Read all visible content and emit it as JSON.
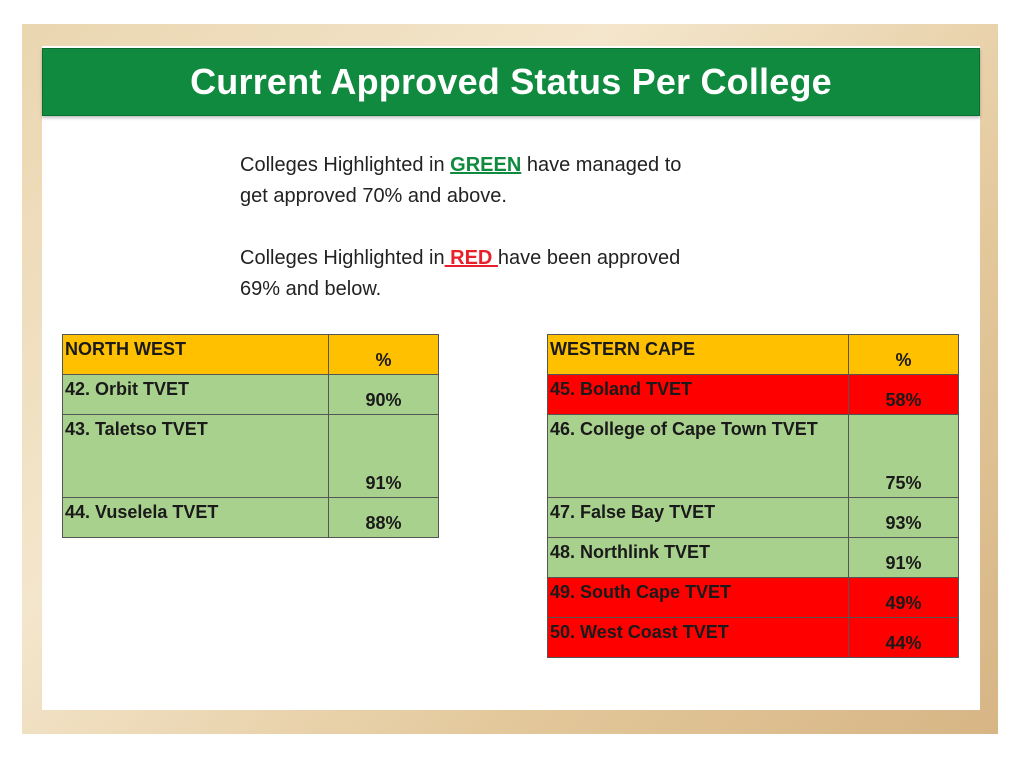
{
  "title": "Current Approved Status Per College",
  "legend": {
    "green_prefix": "Colleges Highlighted in ",
    "green_word": "GREEN",
    "green_suffix": " have managed to",
    "green_line2": "get approved 70% and above.",
    "red_prefix": "Colleges Highlighted in",
    "red_word": " RED ",
    "red_suffix": "have been approved",
    "red_line2": "69% and below."
  },
  "colors": {
    "green": "#a9d18e",
    "red": "#ff0000",
    "header": "#ffc000",
    "title_bar": "#0f8a3e"
  },
  "north_west": {
    "header": "NORTH WEST",
    "pct_header": "%",
    "rows": [
      {
        "name": "42. Orbit TVET",
        "pct": "90%",
        "status": "green"
      },
      {
        "name": "43. Taletso TVET",
        "pct": "91%",
        "status": "green"
      },
      {
        "name": "44. Vuselela TVET",
        "pct": "88%",
        "status": "green"
      }
    ]
  },
  "western_cape": {
    "header": "WESTERN CAPE",
    "pct_header": "%",
    "rows": [
      {
        "name": "45. Boland TVET",
        "pct": "58%",
        "status": "red"
      },
      {
        "name": "46. College of Cape Town TVET",
        "pct": "75%",
        "status": "green"
      },
      {
        "name": "47. False Bay TVET",
        "pct": "93%",
        "status": "green"
      },
      {
        "name": "48. Northlink TVET",
        "pct": "91%",
        "status": "green"
      },
      {
        "name": "49. South Cape TVET",
        "pct": "49%",
        "status": "red"
      },
      {
        "name": "50. West Coast TVET",
        "pct": "44%",
        "status": "red"
      }
    ]
  }
}
